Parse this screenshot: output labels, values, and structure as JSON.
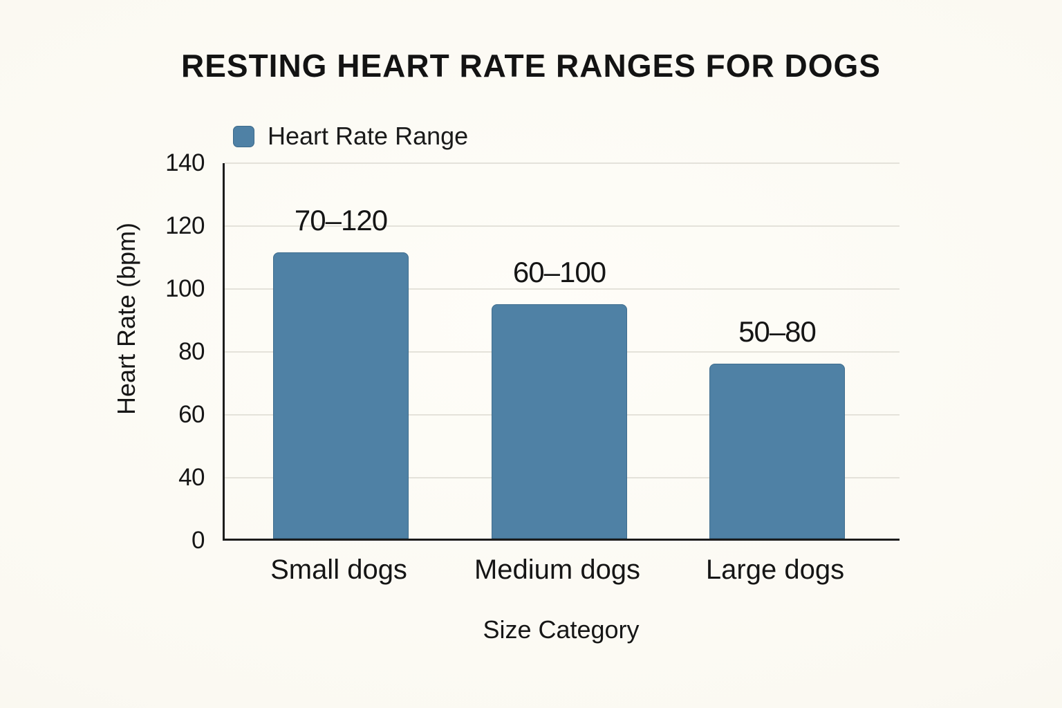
{
  "chart_data": {
    "type": "bar",
    "title": "RESTING HEART RATE RANGES FOR DOGS",
    "xlabel": "Size Category",
    "ylabel": "Heart Rate (bpm)",
    "categories": [
      "Small dogs",
      "Medium dogs",
      "Large dogs"
    ],
    "series": [
      {
        "name": "Heart Rate Range",
        "range_labels": [
          "70–120",
          "60–100",
          "50–80"
        ],
        "range_min": [
          70,
          60,
          50
        ],
        "range_max": [
          120,
          100,
          80
        ],
        "drawn_bar_tops": [
          111,
          94.5,
          75.5
        ]
      }
    ],
    "y_ticks": [
      140,
      120,
      100,
      80,
      60,
      40,
      0
    ],
    "axis_note": "y tick labels evenly spaced as rendered; no 20 label shown",
    "grid": "horizontal",
    "legend_position": "top-left",
    "colors": {
      "bar": "#4f81a5",
      "background": "#fbf9f2",
      "gridline": "#e4e2da",
      "axis": "#1c1c1c",
      "text": "#141414"
    }
  }
}
